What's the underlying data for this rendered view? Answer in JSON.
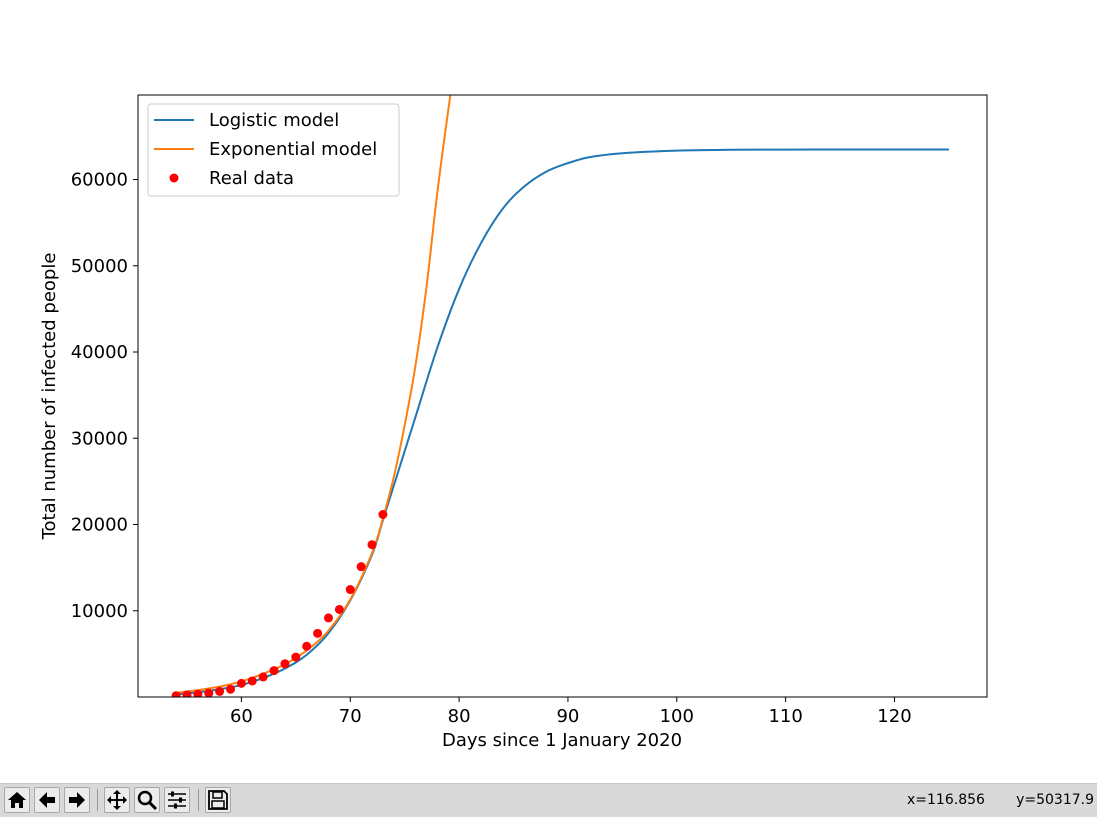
{
  "window": {
    "coord_x": "x=116.856",
    "coord_y": "y=50317.9"
  },
  "toolbar": {
    "buttons": [
      "home-icon",
      "back-arrow-icon",
      "forward-arrow-icon",
      "pan-icon",
      "zoom-icon",
      "configure-subplots-icon",
      "save-icon"
    ]
  },
  "chart_data": {
    "type": "line",
    "title": "",
    "xlabel": "Days since 1 January 2020",
    "ylabel": "Total number of infected people",
    "xlim": [
      50.5,
      128.5
    ],
    "ylim": [
      0,
      69800
    ],
    "xticks": [
      60,
      70,
      80,
      90,
      100,
      110,
      120
    ],
    "yticks": [
      10000,
      20000,
      30000,
      40000,
      50000,
      60000
    ],
    "legend_position": "top-left",
    "grid": false,
    "series": [
      {
        "name": "Logistic model",
        "kind": "line",
        "color": "#1f77b4",
        "x": [
          54,
          56,
          58,
          60,
          62,
          64,
          66,
          68,
          70,
          72,
          73,
          74,
          76,
          78,
          80,
          82,
          84,
          86,
          88,
          90,
          92,
          95,
          100,
          105,
          110,
          115,
          120,
          125
        ],
        "y": [
          300,
          550,
          900,
          1400,
          2200,
          3300,
          4900,
          7400,
          11200,
          16500,
          20500,
          24500,
          32500,
          40500,
          47300,
          52600,
          56600,
          59200,
          60900,
          61900,
          62600,
          63050,
          63350,
          63450,
          63470,
          63480,
          63480,
          63480
        ]
      },
      {
        "name": "Exponential model",
        "kind": "line",
        "color": "#ff7f0e",
        "x": [
          54,
          56,
          58,
          60,
          62,
          64,
          66,
          68,
          70,
          72,
          73,
          74,
          75,
          76,
          77,
          78,
          79,
          79.4
        ],
        "y": [
          500,
          800,
          1200,
          1800,
          2700,
          3800,
          5400,
          7700,
          11300,
          16700,
          20700,
          25500,
          31500,
          38500,
          47500,
          58500,
          68000,
          71500
        ]
      },
      {
        "name": "Real data",
        "kind": "scatter",
        "color": "#ff0000",
        "x": [
          54,
          55,
          56,
          57,
          58,
          59,
          60,
          61,
          62,
          63,
          64,
          65,
          66,
          67,
          68,
          69,
          70,
          71,
          72,
          73
        ],
        "y": [
          150,
          230,
          320,
          450,
          650,
          900,
          1580,
          1860,
          2330,
          3060,
          3850,
          4630,
          5880,
          7380,
          9170,
          10150,
          12460,
          15110,
          17660,
          21160
        ]
      }
    ]
  }
}
